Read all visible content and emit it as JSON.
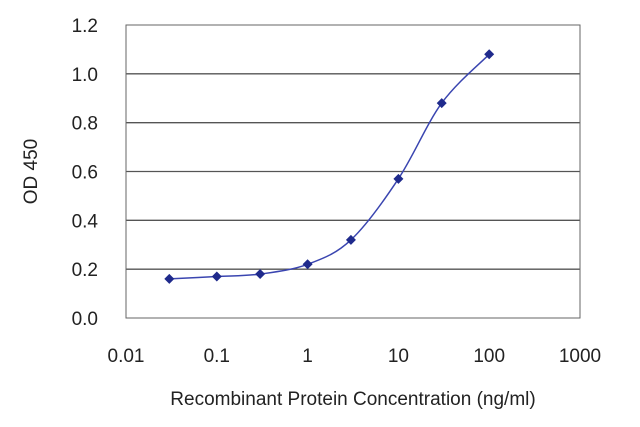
{
  "chart_data": {
    "type": "line",
    "title": "",
    "xlabel": "Recombinant Protein Concentration (ng/ml)",
    "ylabel": "OD 450",
    "x_scale": "log",
    "xlim": [
      0.01,
      1000
    ],
    "ylim": [
      0.0,
      1.2
    ],
    "x_ticks": [
      0.01,
      0.1,
      1,
      10,
      100,
      1000
    ],
    "x_tick_labels": [
      "0.01",
      "0.1",
      "1",
      "10",
      "100",
      "1000"
    ],
    "y_ticks": [
      0.0,
      0.2,
      0.4,
      0.6,
      0.8,
      1.0,
      1.2
    ],
    "y_tick_labels": [
      "0.0",
      "0.2",
      "0.4",
      "0.6",
      "0.8",
      "1.0",
      "1.2"
    ],
    "grid": "horizontal",
    "legend": "none",
    "series": [
      {
        "x": [
          0.03,
          0.1,
          0.3,
          1,
          3,
          10,
          30,
          100
        ],
        "values": [
          0.16,
          0.17,
          0.18,
          0.22,
          0.32,
          0.57,
          0.88,
          1.08
        ],
        "color": "#1f2a8c",
        "marker": "diamond",
        "line": "smooth"
      }
    ],
    "colors": {
      "line": "#3a45b0",
      "marker": "#1f2a8c",
      "grid": "#555555",
      "frame": "#666666"
    }
  }
}
